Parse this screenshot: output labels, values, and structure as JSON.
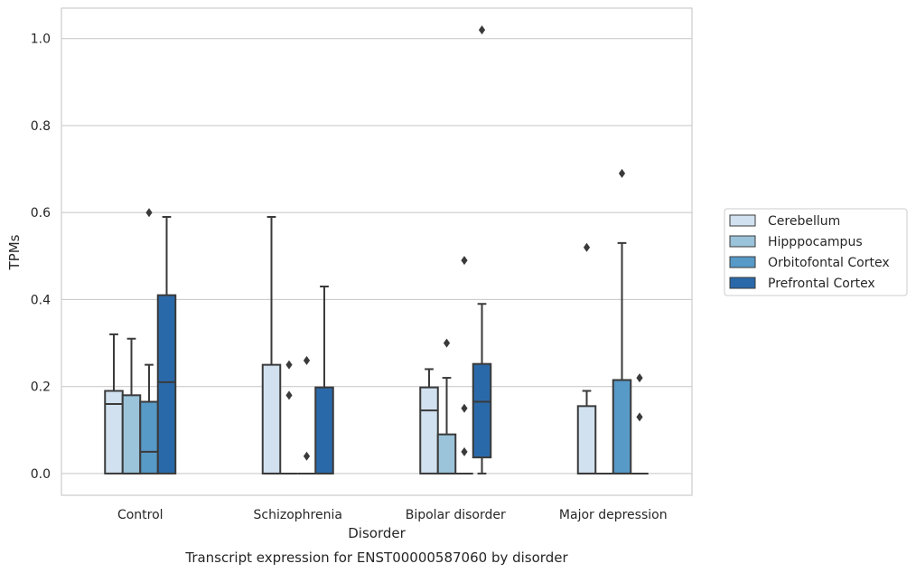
{
  "chart_data": {
    "type": "box",
    "title": "",
    "caption": "Transcript expression for ENST00000587060 by disorder",
    "xlabel": "Disorder",
    "ylabel": "TPMs",
    "ylim": [
      -0.05,
      1.07
    ],
    "yticks": [
      0.0,
      0.2,
      0.4,
      0.6,
      0.8,
      1.0
    ],
    "ytick_labels": [
      "0.0",
      "0.2",
      "0.4",
      "0.6",
      "0.8",
      "1.0"
    ],
    "grid": true,
    "legend_position": "right",
    "categories": [
      "Control",
      "Schizophrenia",
      "Bipolar disorder",
      "Major depression"
    ],
    "series": [
      {
        "name": "Cerebellum",
        "color": "#d1e1f0",
        "boxes": [
          {
            "q1": 0.0,
            "median": 0.16,
            "q3": 0.19,
            "whisker_low": 0.0,
            "whisker_high": 0.32,
            "outliers": []
          },
          {
            "q1": 0.0,
            "median": 0.0,
            "q3": 0.25,
            "whisker_low": 0.0,
            "whisker_high": 0.59,
            "outliers": []
          },
          {
            "q1": 0.0,
            "median": 0.145,
            "q3": 0.198,
            "whisker_low": 0.0,
            "whisker_high": 0.24,
            "outliers": []
          },
          {
            "q1": 0.0,
            "median": 0.0,
            "q3": 0.155,
            "whisker_low": 0.0,
            "whisker_high": 0.19,
            "outliers": [
              0.52
            ]
          }
        ]
      },
      {
        "name": "Hipppocampus",
        "color": "#9bc3da",
        "boxes": [
          {
            "q1": 0.0,
            "median": 0.0,
            "q3": 0.18,
            "whisker_low": 0.0,
            "whisker_high": 0.31,
            "outliers": []
          },
          {
            "q1": 0.0,
            "median": 0.0,
            "q3": 0.0,
            "whisker_low": 0.0,
            "whisker_high": 0.0,
            "outliers": [
              0.18,
              0.25
            ]
          },
          {
            "q1": 0.0,
            "median": 0.0,
            "q3": 0.09,
            "whisker_low": 0.0,
            "whisker_high": 0.22,
            "outliers": [
              0.3
            ]
          },
          {
            "q1": 0.0,
            "median": 0.0,
            "q3": 0.0,
            "whisker_low": 0.0,
            "whisker_high": 0.0,
            "outliers": []
          }
        ]
      },
      {
        "name": "Orbitofontal Cortex",
        "color": "#5799c7",
        "boxes": [
          {
            "q1": 0.0,
            "median": 0.05,
            "q3": 0.165,
            "whisker_low": 0.0,
            "whisker_high": 0.25,
            "outliers": [
              0.6
            ]
          },
          {
            "q1": 0.0,
            "median": 0.0,
            "q3": 0.0,
            "whisker_low": 0.0,
            "whisker_high": 0.0,
            "outliers": [
              0.04,
              0.26
            ]
          },
          {
            "q1": 0.0,
            "median": 0.0,
            "q3": 0.0,
            "whisker_low": 0.0,
            "whisker_high": 0.0,
            "outliers": [
              0.05,
              0.15,
              0.49
            ]
          },
          {
            "q1": 0.0,
            "median": 0.0,
            "q3": 0.215,
            "whisker_low": 0.0,
            "whisker_high": 0.53,
            "outliers": [
              0.69
            ]
          }
        ]
      },
      {
        "name": "Prefrontal Cortex",
        "color": "#2a69a9",
        "boxes": [
          {
            "q1": 0.0,
            "median": 0.21,
            "q3": 0.41,
            "whisker_low": 0.0,
            "whisker_high": 0.59,
            "outliers": []
          },
          {
            "q1": 0.0,
            "median": 0.0,
            "q3": 0.198,
            "whisker_low": 0.0,
            "whisker_high": 0.43,
            "outliers": []
          },
          {
            "q1": 0.037,
            "median": 0.165,
            "q3": 0.252,
            "whisker_low": 0.0,
            "whisker_high": 0.39,
            "outliers": [
              1.02
            ]
          },
          {
            "q1": 0.0,
            "median": 0.0,
            "q3": 0.0,
            "whisker_low": 0.0,
            "whisker_high": 0.0,
            "outliers": [
              0.13,
              0.22
            ]
          }
        ]
      }
    ]
  }
}
